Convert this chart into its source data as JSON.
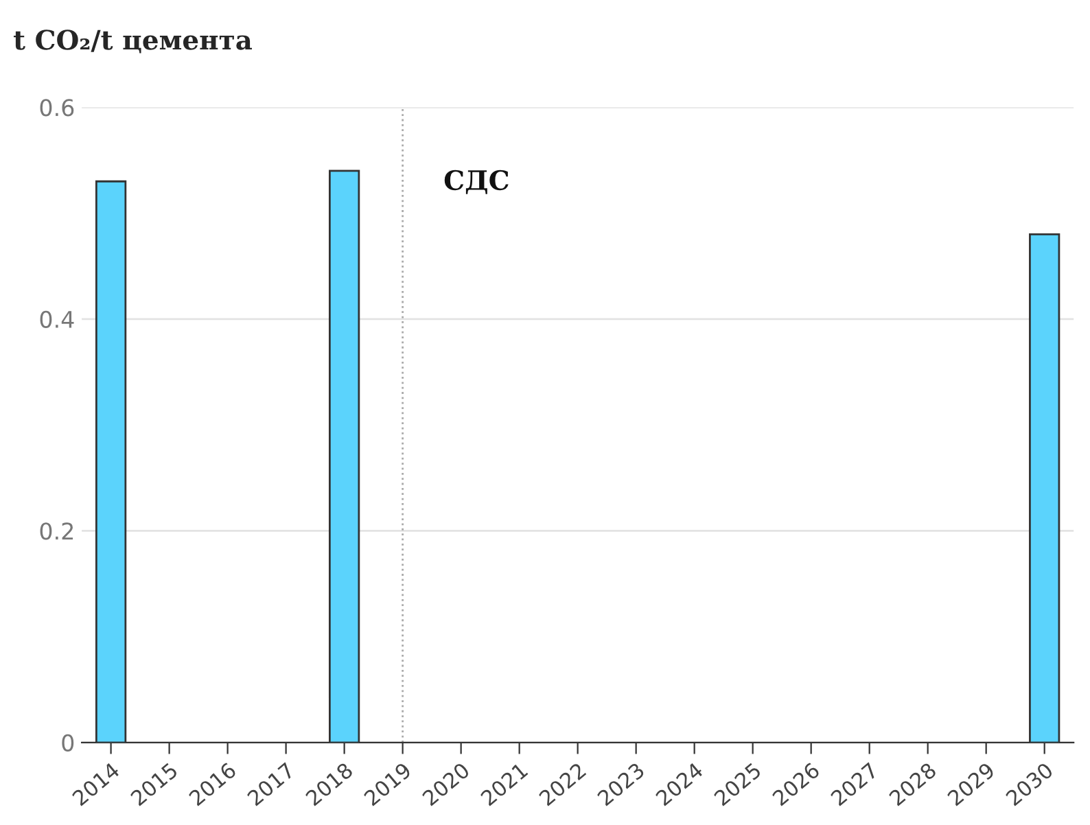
{
  "chart_data": {
    "type": "bar",
    "title": "t CO₂/t цемента",
    "x": [
      2014,
      2018,
      2030
    ],
    "values": [
      0.53,
      0.54,
      0.48
    ],
    "color": "#5bd3fc",
    "xlim": [
      2013.5,
      2030.5
    ],
    "xticks": [
      2014,
      2015,
      2016,
      2017,
      2018,
      2019,
      2020,
      2021,
      2022,
      2023,
      2024,
      2025,
      2026,
      2027,
      2028,
      2029,
      2030
    ],
    "ylim": [
      0,
      0.6
    ],
    "yticks": [
      0,
      0.2,
      0.4,
      0.6
    ],
    "grid": "y",
    "legend": false,
    "ref_lines": [
      {
        "axis": "x",
        "value": 2019,
        "label": "СДС",
        "color": "#aaaaaa",
        "line_style": "dotted"
      }
    ]
  }
}
